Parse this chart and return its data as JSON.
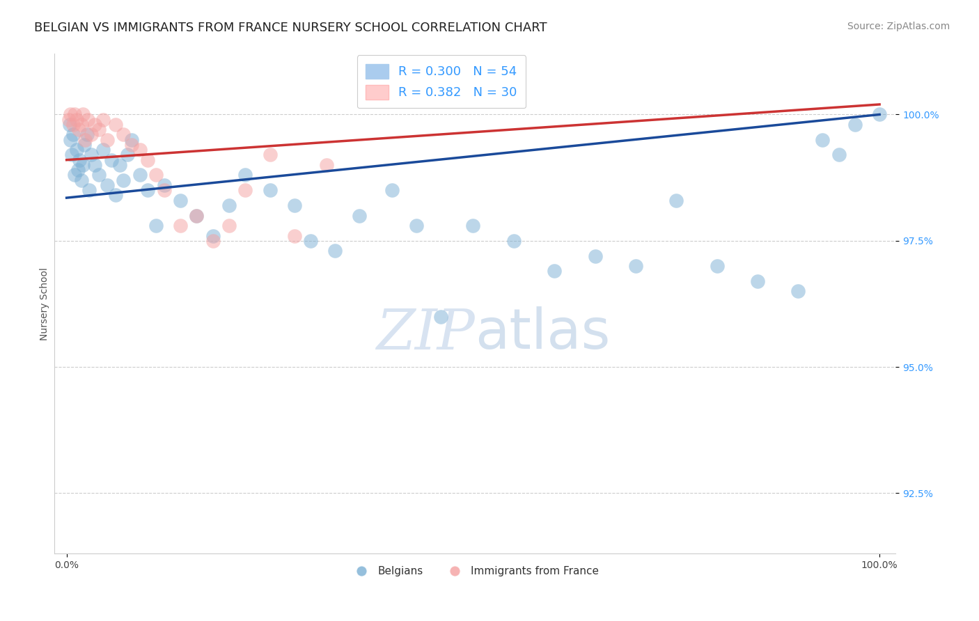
{
  "title": "BELGIAN VS IMMIGRANTS FROM FRANCE NURSERY SCHOOL CORRELATION CHART",
  "source": "Source: ZipAtlas.com",
  "ylabel": "Nursery School",
  "blue_R": 0.3,
  "blue_N": 54,
  "pink_R": 0.382,
  "pink_N": 30,
  "blue_color": "#7BAFD4",
  "pink_color": "#F4A0A0",
  "blue_line_color": "#1A4A9A",
  "pink_line_color": "#CC3333",
  "legend_blue_color": "#AACCEE",
  "legend_pink_color": "#FFCCCC",
  "ylim_min": 91.3,
  "ylim_max": 101.2,
  "xlim_min": -1.5,
  "xlim_max": 102,
  "yticks": [
    92.5,
    95.0,
    97.5,
    100.0
  ],
  "xticks": [
    0.0,
    100.0
  ],
  "background_color": "#FFFFFF",
  "grid_color": "#CCCCCC",
  "legend_label_blue": "Belgians",
  "legend_label_pink": "Immigrants from France",
  "title_fontsize": 13,
  "axis_label_fontsize": 10,
  "tick_fontsize": 10,
  "legend_fontsize": 13,
  "source_fontsize": 10,
  "blue_points_x": [
    0.4,
    0.5,
    0.6,
    0.8,
    1.0,
    1.2,
    1.4,
    1.6,
    1.8,
    2.0,
    2.2,
    2.5,
    2.8,
    3.0,
    3.5,
    4.0,
    4.5,
    5.0,
    5.5,
    6.0,
    6.5,
    7.0,
    7.5,
    8.0,
    9.0,
    10.0,
    11.0,
    12.0,
    14.0,
    16.0,
    18.0,
    20.0,
    22.0,
    25.0,
    28.0,
    30.0,
    33.0,
    36.0,
    40.0,
    43.0,
    46.0,
    50.0,
    55.0,
    60.0,
    65.0,
    70.0,
    75.0,
    80.0,
    85.0,
    90.0,
    93.0,
    95.0,
    97.0,
    100.0
  ],
  "blue_points_y": [
    99.8,
    99.5,
    99.2,
    99.6,
    98.8,
    99.3,
    98.9,
    99.1,
    98.7,
    99.0,
    99.4,
    99.6,
    98.5,
    99.2,
    99.0,
    98.8,
    99.3,
    98.6,
    99.1,
    98.4,
    99.0,
    98.7,
    99.2,
    99.5,
    98.8,
    98.5,
    97.8,
    98.6,
    98.3,
    98.0,
    97.6,
    98.2,
    98.8,
    98.5,
    98.2,
    97.5,
    97.3,
    98.0,
    98.5,
    97.8,
    96.0,
    97.8,
    97.5,
    96.9,
    97.2,
    97.0,
    98.3,
    97.0,
    96.7,
    96.5,
    99.5,
    99.2,
    99.8,
    100.0
  ],
  "pink_points_x": [
    0.3,
    0.5,
    0.8,
    1.0,
    1.2,
    1.5,
    1.8,
    2.0,
    2.3,
    2.6,
    3.0,
    3.5,
    4.0,
    4.5,
    5.0,
    6.0,
    7.0,
    8.0,
    9.0,
    10.0,
    11.0,
    12.0,
    14.0,
    16.0,
    18.0,
    20.0,
    22.0,
    25.0,
    28.0,
    32.0
  ],
  "pink_points_y": [
    99.9,
    100.0,
    99.8,
    100.0,
    99.9,
    99.7,
    99.8,
    100.0,
    99.5,
    99.9,
    99.6,
    99.8,
    99.7,
    99.9,
    99.5,
    99.8,
    99.6,
    99.4,
    99.3,
    99.1,
    98.8,
    98.5,
    97.8,
    98.0,
    97.5,
    97.8,
    98.5,
    99.2,
    97.6,
    99.0
  ],
  "blue_line_x0": 0,
  "blue_line_y0": 98.35,
  "blue_line_x1": 100,
  "blue_line_y1": 100.0,
  "pink_line_x0": 0,
  "pink_line_y0": 99.1,
  "pink_line_x1": 100,
  "pink_line_y1": 100.2
}
